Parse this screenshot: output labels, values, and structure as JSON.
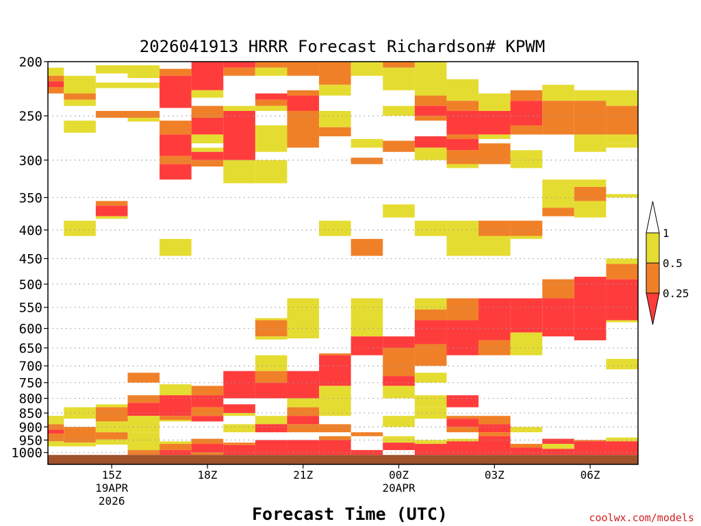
{
  "chart_data": {
    "type": "heatmap",
    "title": "2026041913 HRRR Forecast Richardson# KPWM",
    "xlabel": "Forecast Time (UTC)",
    "ylabel": "",
    "credit": "coolwx.com/models",
    "y_ticks": [
      "200",
      "250",
      "300",
      "350",
      "400",
      "450",
      "500",
      "550",
      "600",
      "650",
      "700",
      "750",
      "800",
      "850",
      "900",
      "950",
      "1000"
    ],
    "y_values": [
      200,
      250,
      300,
      350,
      400,
      450,
      500,
      550,
      600,
      650,
      700,
      750,
      800,
      850,
      900,
      950,
      1000
    ],
    "y_range": [
      200,
      1050
    ],
    "x_range_hours": [
      13,
      31.5
    ],
    "x_ticks": [
      {
        "hour": 15,
        "lines": [
          "15Z",
          "19APR",
          "2026"
        ]
      },
      {
        "hour": 18,
        "lines": [
          "18Z"
        ]
      },
      {
        "hour": 21,
        "lines": [
          "21Z"
        ]
      },
      {
        "hour": 24,
        "lines": [
          "00Z",
          "20APR"
        ]
      },
      {
        "hour": 27,
        "lines": [
          "03Z"
        ]
      },
      {
        "hour": 30,
        "lines": [
          "06Z"
        ]
      }
    ],
    "legend": {
      "labels": [
        "1",
        "0.5",
        "0.25"
      ],
      "colors": {
        "above_1": "#ffffff",
        "half_to_1": "#e5dc32",
        "quarter_to_half": "#f08028",
        "below_quarter": "#ff3c3c"
      }
    },
    "colors": {
      "y": "#e5dc32",
      "o": "#f08028",
      "r": "#ff3c3c",
      "ground": "#a0522d"
    },
    "ground_from_hpa": 1010,
    "columns": [
      {
        "hour": 13,
        "cells": [
          [
            205,
            212,
            "y"
          ],
          [
            212,
            217,
            "o"
          ],
          [
            217,
            222,
            "r"
          ],
          [
            222,
            228,
            "o"
          ],
          [
            860,
            890,
            "y"
          ],
          [
            890,
            910,
            "o"
          ],
          [
            910,
            925,
            "r"
          ],
          [
            925,
            955,
            "o"
          ],
          [
            955,
            975,
            "y"
          ]
        ]
      },
      {
        "hour": 14,
        "cells": [
          [
            212,
            228,
            "y"
          ],
          [
            228,
            234,
            "o"
          ],
          [
            234,
            240,
            "y"
          ],
          [
            255,
            268,
            "y"
          ],
          [
            385,
            410,
            "y"
          ],
          [
            830,
            870,
            "y"
          ],
          [
            900,
            960,
            "o"
          ],
          [
            960,
            975,
            "y"
          ]
        ]
      },
      {
        "hour": 15,
        "cells": [
          [
            203,
            210,
            "y"
          ],
          [
            218,
            223,
            "y"
          ],
          [
            245,
            252,
            "o"
          ],
          [
            355,
            362,
            "o"
          ],
          [
            362,
            378,
            "r"
          ],
          [
            378,
            382,
            "y"
          ],
          [
            820,
            830,
            "y"
          ],
          [
            830,
            880,
            "o"
          ],
          [
            880,
            920,
            "y"
          ],
          [
            920,
            948,
            "o"
          ],
          [
            948,
            968,
            "y"
          ]
        ]
      },
      {
        "hour": 16,
        "cells": [
          [
            203,
            214,
            "y"
          ],
          [
            218,
            223,
            "y"
          ],
          [
            245,
            252,
            "o"
          ],
          [
            252,
            256,
            "y"
          ],
          [
            720,
            750,
            "o"
          ],
          [
            790,
            815,
            "o"
          ],
          [
            815,
            860,
            "r"
          ],
          [
            860,
            920,
            "y"
          ],
          [
            920,
            990,
            "y"
          ],
          [
            990,
            1010,
            "o"
          ]
        ]
      },
      {
        "hour": 17,
        "cells": [
          [
            206,
            212,
            "o"
          ],
          [
            212,
            242,
            "r"
          ],
          [
            255,
            270,
            "o"
          ],
          [
            270,
            295,
            "r"
          ],
          [
            295,
            305,
            "o"
          ],
          [
            305,
            325,
            "r"
          ],
          [
            415,
            445,
            "y"
          ],
          [
            755,
            790,
            "y"
          ],
          [
            790,
            860,
            "r"
          ],
          [
            860,
            875,
            "o"
          ],
          [
            875,
            880,
            "y"
          ],
          [
            955,
            965,
            "y"
          ],
          [
            965,
            990,
            "o"
          ],
          [
            990,
            1010,
            "r"
          ]
        ]
      },
      {
        "hour": 18,
        "cells": [
          [
            200,
            225,
            "r"
          ],
          [
            225,
            232,
            "y"
          ],
          [
            240,
            252,
            "o"
          ],
          [
            252,
            270,
            "r"
          ],
          [
            270,
            280,
            "y"
          ],
          [
            285,
            290,
            "y"
          ],
          [
            290,
            300,
            "r"
          ],
          [
            300,
            308,
            "o"
          ],
          [
            760,
            790,
            "o"
          ],
          [
            790,
            830,
            "r"
          ],
          [
            830,
            860,
            "o"
          ],
          [
            860,
            880,
            "r"
          ],
          [
            945,
            965,
            "o"
          ],
          [
            965,
            1000,
            "r"
          ],
          [
            1000,
            1010,
            "o"
          ]
        ]
      },
      {
        "hour": 19,
        "cells": [
          [
            200,
            205,
            "r"
          ],
          [
            205,
            212,
            "o"
          ],
          [
            240,
            245,
            "y"
          ],
          [
            245,
            300,
            "r"
          ],
          [
            300,
            330,
            "y"
          ],
          [
            715,
            800,
            "r"
          ],
          [
            820,
            850,
            "r"
          ],
          [
            850,
            860,
            "y"
          ],
          [
            890,
            920,
            "y"
          ],
          [
            960,
            970,
            "o"
          ],
          [
            970,
            1010,
            "r"
          ]
        ]
      },
      {
        "hour": 20,
        "cells": [
          [
            200,
            205,
            "o"
          ],
          [
            205,
            212,
            "y"
          ],
          [
            228,
            234,
            "r"
          ],
          [
            234,
            240,
            "o"
          ],
          [
            240,
            245,
            "y"
          ],
          [
            260,
            290,
            "y"
          ],
          [
            300,
            330,
            "y"
          ],
          [
            575,
            580,
            "y"
          ],
          [
            580,
            620,
            "o"
          ],
          [
            620,
            628,
            "y"
          ],
          [
            670,
            715,
            "y"
          ],
          [
            715,
            750,
            "o"
          ],
          [
            750,
            800,
            "r"
          ],
          [
            860,
            890,
            "y"
          ],
          [
            890,
            920,
            "r"
          ],
          [
            950,
            1010,
            "r"
          ]
        ]
      },
      {
        "hour": 21,
        "cells": [
          [
            200,
            212,
            "o"
          ],
          [
            225,
            230,
            "o"
          ],
          [
            230,
            245,
            "r"
          ],
          [
            245,
            285,
            "o"
          ],
          [
            530,
            625,
            "y"
          ],
          [
            715,
            800,
            "r"
          ],
          [
            800,
            830,
            "y"
          ],
          [
            830,
            860,
            "o"
          ],
          [
            860,
            890,
            "r"
          ],
          [
            890,
            920,
            "o"
          ],
          [
            950,
            1010,
            "r"
          ]
        ]
      },
      {
        "hour": 22,
        "cells": [
          [
            200,
            220,
            "o"
          ],
          [
            220,
            230,
            "y"
          ],
          [
            245,
            262,
            "y"
          ],
          [
            262,
            272,
            "o"
          ],
          [
            385,
            410,
            "y"
          ],
          [
            665,
            670,
            "o"
          ],
          [
            670,
            760,
            "r"
          ],
          [
            760,
            800,
            "y"
          ],
          [
            800,
            860,
            "y"
          ],
          [
            890,
            920,
            "o"
          ],
          [
            935,
            950,
            "o"
          ],
          [
            950,
            1010,
            "r"
          ]
        ]
      },
      {
        "hour": 23,
        "cells": [
          [
            200,
            212,
            "y"
          ],
          [
            275,
            285,
            "y"
          ],
          [
            297,
            305,
            "o"
          ],
          [
            415,
            445,
            "o"
          ],
          [
            530,
            620,
            "y"
          ],
          [
            620,
            670,
            "r"
          ],
          [
            920,
            935,
            "o"
          ],
          [
            990,
            1010,
            "r"
          ]
        ]
      },
      {
        "hour": 24,
        "cells": [
          [
            200,
            205,
            "o"
          ],
          [
            205,
            225,
            "y"
          ],
          [
            240,
            250,
            "y"
          ],
          [
            277,
            290,
            "o"
          ],
          [
            360,
            380,
            "y"
          ],
          [
            620,
            650,
            "r"
          ],
          [
            650,
            730,
            "o"
          ],
          [
            730,
            760,
            "r"
          ],
          [
            760,
            800,
            "y"
          ],
          [
            860,
            900,
            "y"
          ],
          [
            935,
            960,
            "y"
          ],
          [
            960,
            990,
            "r"
          ]
        ]
      },
      {
        "hour": 25,
        "cells": [
          [
            200,
            230,
            "y"
          ],
          [
            230,
            240,
            "o"
          ],
          [
            240,
            250,
            "r"
          ],
          [
            250,
            255,
            "o"
          ],
          [
            272,
            285,
            "r"
          ],
          [
            285,
            300,
            "y"
          ],
          [
            385,
            410,
            "y"
          ],
          [
            530,
            555,
            "y"
          ],
          [
            555,
            580,
            "o"
          ],
          [
            580,
            640,
            "r"
          ],
          [
            640,
            700,
            "o"
          ],
          [
            720,
            750,
            "y"
          ],
          [
            790,
            830,
            "y"
          ],
          [
            830,
            870,
            "y"
          ],
          [
            950,
            965,
            "y"
          ],
          [
            965,
            1010,
            "r"
          ]
        ]
      },
      {
        "hour": 26,
        "cells": [
          [
            215,
            235,
            "y"
          ],
          [
            235,
            245,
            "o"
          ],
          [
            245,
            270,
            "r"
          ],
          [
            270,
            275,
            "o"
          ],
          [
            275,
            288,
            "r"
          ],
          [
            288,
            305,
            "o"
          ],
          [
            305,
            310,
            "y"
          ],
          [
            385,
            410,
            "y"
          ],
          [
            410,
            445,
            "y"
          ],
          [
            530,
            580,
            "o"
          ],
          [
            580,
            670,
            "r"
          ],
          [
            790,
            830,
            "r"
          ],
          [
            860,
            870,
            "o"
          ],
          [
            870,
            900,
            "r"
          ],
          [
            900,
            920,
            "o"
          ],
          [
            945,
            955,
            "y"
          ],
          [
            955,
            1010,
            "r"
          ]
        ]
      },
      {
        "hour": 27,
        "cells": [
          [
            228,
            245,
            "y"
          ],
          [
            245,
            270,
            "r"
          ],
          [
            270,
            275,
            "y"
          ],
          [
            280,
            305,
            "o"
          ],
          [
            385,
            410,
            "o"
          ],
          [
            410,
            445,
            "y"
          ],
          [
            530,
            630,
            "r"
          ],
          [
            630,
            670,
            "o"
          ],
          [
            860,
            890,
            "o"
          ],
          [
            890,
            920,
            "r"
          ],
          [
            920,
            935,
            "o"
          ],
          [
            935,
            950,
            "r"
          ],
          [
            950,
            1010,
            "r"
          ]
        ]
      },
      {
        "hour": 28,
        "cells": [
          [
            225,
            235,
            "o"
          ],
          [
            235,
            260,
            "r"
          ],
          [
            260,
            270,
            "o"
          ],
          [
            288,
            310,
            "y"
          ],
          [
            385,
            410,
            "o"
          ],
          [
            410,
            415,
            "y"
          ],
          [
            530,
            610,
            "r"
          ],
          [
            610,
            670,
            "y"
          ],
          [
            900,
            920,
            "y"
          ],
          [
            965,
            980,
            "o"
          ],
          [
            980,
            1010,
            "r"
          ]
        ]
      },
      {
        "hour": 29,
        "cells": [
          [
            220,
            235,
            "y"
          ],
          [
            235,
            270,
            "o"
          ],
          [
            325,
            365,
            "y"
          ],
          [
            365,
            378,
            "o"
          ],
          [
            490,
            530,
            "o"
          ],
          [
            530,
            620,
            "r"
          ],
          [
            945,
            965,
            "r"
          ],
          [
            965,
            985,
            "y"
          ],
          [
            985,
            1010,
            "r"
          ]
        ]
      },
      {
        "hour": 30,
        "cells": [
          [
            225,
            235,
            "y"
          ],
          [
            235,
            270,
            "o"
          ],
          [
            270,
            290,
            "y"
          ],
          [
            325,
            335,
            "y"
          ],
          [
            335,
            355,
            "o"
          ],
          [
            355,
            380,
            "y"
          ],
          [
            485,
            630,
            "r"
          ],
          [
            950,
            955,
            "o"
          ],
          [
            955,
            1010,
            "r"
          ]
        ]
      },
      {
        "hour": 31,
        "cells": [
          [
            225,
            240,
            "y"
          ],
          [
            240,
            270,
            "o"
          ],
          [
            270,
            280,
            "y"
          ],
          [
            280,
            285,
            "y"
          ],
          [
            345,
            350,
            "y"
          ],
          [
            450,
            460,
            "y"
          ],
          [
            460,
            490,
            "o"
          ],
          [
            490,
            580,
            "r"
          ],
          [
            580,
            585,
            "y"
          ],
          [
            680,
            710,
            "y"
          ],
          [
            940,
            955,
            "y"
          ],
          [
            955,
            1010,
            "r"
          ]
        ]
      }
    ]
  }
}
